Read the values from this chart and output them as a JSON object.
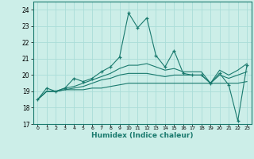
{
  "title": "",
  "xlabel": "Humidex (Indice chaleur)",
  "xlim": [
    -0.5,
    23.5
  ],
  "ylim": [
    17,
    24.5
  ],
  "yticks": [
    17,
    18,
    19,
    20,
    21,
    22,
    23,
    24
  ],
  "xticks": [
    0,
    1,
    2,
    3,
    4,
    5,
    6,
    7,
    8,
    9,
    10,
    11,
    12,
    13,
    14,
    15,
    16,
    17,
    18,
    19,
    20,
    21,
    22,
    23
  ],
  "bg_color": "#cceee8",
  "grid_color": "#aaddd8",
  "line_color": "#1a7a6e",
  "lines": [
    {
      "x": [
        0,
        1,
        2,
        3,
        4,
        5,
        6,
        7,
        8,
        9,
        10,
        11,
        12,
        13,
        14,
        15,
        16,
        17,
        18,
        19,
        20,
        21,
        22,
        23
      ],
      "y": [
        18.5,
        19.2,
        19.0,
        19.2,
        19.8,
        19.6,
        19.8,
        20.2,
        20.5,
        21.1,
        23.8,
        22.9,
        23.5,
        21.2,
        20.5,
        21.5,
        20.1,
        20.0,
        20.0,
        19.5,
        20.1,
        19.4,
        17.2,
        20.6
      ],
      "marker": true
    },
    {
      "x": [
        0,
        1,
        2,
        3,
        4,
        5,
        6,
        7,
        8,
        9,
        10,
        11,
        12,
        13,
        14,
        15,
        16,
        17,
        18,
        19,
        20,
        21,
        22,
        23
      ],
      "y": [
        18.5,
        19.0,
        19.0,
        19.1,
        19.1,
        19.1,
        19.2,
        19.2,
        19.3,
        19.4,
        19.5,
        19.5,
        19.5,
        19.5,
        19.5,
        19.5,
        19.5,
        19.5,
        19.5,
        19.5,
        19.5,
        19.5,
        19.5,
        19.6
      ],
      "marker": false
    },
    {
      "x": [
        0,
        1,
        2,
        3,
        4,
        5,
        6,
        7,
        8,
        9,
        10,
        11,
        12,
        13,
        14,
        15,
        16,
        17,
        18,
        19,
        20,
        21,
        22,
        23
      ],
      "y": [
        18.5,
        19.0,
        19.0,
        19.1,
        19.2,
        19.3,
        19.5,
        19.7,
        19.8,
        20.0,
        20.1,
        20.1,
        20.1,
        20.0,
        19.9,
        20.0,
        20.0,
        20.0,
        20.0,
        19.5,
        20.0,
        19.8,
        20.0,
        20.2
      ],
      "marker": false
    },
    {
      "x": [
        0,
        1,
        2,
        3,
        4,
        5,
        6,
        7,
        8,
        9,
        10,
        11,
        12,
        13,
        14,
        15,
        16,
        17,
        18,
        19,
        20,
        21,
        22,
        23
      ],
      "y": [
        18.5,
        19.0,
        19.0,
        19.2,
        19.3,
        19.5,
        19.7,
        19.9,
        20.1,
        20.4,
        20.6,
        20.6,
        20.7,
        20.5,
        20.3,
        20.4,
        20.2,
        20.2,
        20.2,
        19.5,
        20.3,
        20.0,
        20.3,
        20.7
      ],
      "marker": false
    }
  ]
}
